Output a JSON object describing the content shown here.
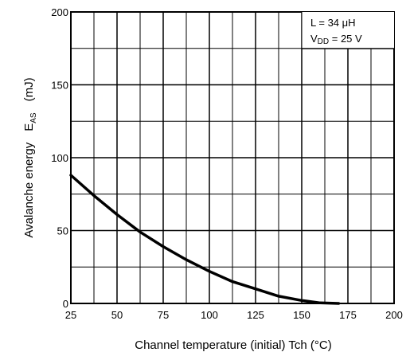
{
  "chart_data": {
    "type": "line",
    "xlabel": "Channel temperature (initial)   Tch   (°C)",
    "ylabel_main": "Avalanche energy",
    "ylabel_symbol": "E",
    "ylabel_symbol_sub": "AS",
    "ylabel_unit": "(mJ)",
    "xlim": [
      25,
      200
    ],
    "ylim": [
      0,
      200
    ],
    "xticks": [
      "25",
      "50",
      "75",
      "100",
      "125",
      "150",
      "175",
      "200"
    ],
    "yticks": [
      "0",
      "50",
      "100",
      "150",
      "200"
    ],
    "grid": true,
    "annotation": {
      "line1": "L = 34 μH",
      "line2_prefix": "V",
      "line2_sub": "DD",
      "line2_suffix": " = 25 V"
    },
    "series": [
      {
        "x": [
          25,
          37.5,
          50,
          62.5,
          75,
          87.5,
          100,
          112.5,
          125,
          137.5,
          150,
          160,
          170
        ],
        "y": [
          88,
          74,
          61,
          49,
          39,
          30,
          22,
          15,
          10,
          5,
          2,
          0.4,
          0
        ]
      }
    ]
  }
}
